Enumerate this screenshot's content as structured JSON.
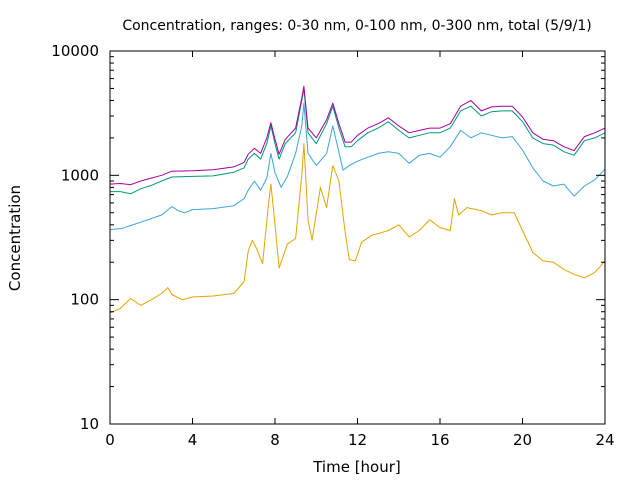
{
  "chart_data": {
    "type": "line",
    "title": "Concentration, ranges: 0-30 nm, 0-100 nm, 0-300 nm, total (5/9/1)",
    "xlabel": "Time [hour]",
    "ylabel": "Concentration",
    "xlim": [
      0,
      24
    ],
    "ylim": [
      10,
      10000
    ],
    "yscale": "log",
    "grid": false,
    "legend": "none",
    "xticks": [
      0,
      4,
      8,
      12,
      16,
      20,
      24
    ],
    "xtick_labels": [
      "0",
      "4",
      "8",
      "12",
      "16",
      "20",
      "24"
    ],
    "yticks": [
      10,
      100,
      1000,
      10000
    ],
    "ytick_labels": [
      "10",
      "100",
      "1000",
      "10000"
    ],
    "series": [
      {
        "color": "#e5a400",
        "points": [
          [
            0,
            78
          ],
          [
            0.5,
            85
          ],
          [
            0.8,
            95
          ],
          [
            1.0,
            102
          ],
          [
            1.5,
            90
          ],
          [
            2.0,
            100
          ],
          [
            2.5,
            112
          ],
          [
            2.8,
            125
          ],
          [
            3.0,
            110
          ],
          [
            3.5,
            100
          ],
          [
            4.0,
            105
          ],
          [
            5.0,
            107
          ],
          [
            6.0,
            112
          ],
          [
            6.5,
            140
          ],
          [
            6.7,
            245
          ],
          [
            6.9,
            300
          ],
          [
            7.1,
            260
          ],
          [
            7.4,
            195
          ],
          [
            7.7,
            620
          ],
          [
            7.8,
            850
          ],
          [
            8.0,
            400
          ],
          [
            8.2,
            180
          ],
          [
            8.6,
            280
          ],
          [
            9.0,
            310
          ],
          [
            9.3,
            1000
          ],
          [
            9.4,
            1800
          ],
          [
            9.6,
            440
          ],
          [
            9.8,
            300
          ],
          [
            10.2,
            800
          ],
          [
            10.5,
            550
          ],
          [
            10.8,
            1200
          ],
          [
            11.1,
            900
          ],
          [
            11.4,
            350
          ],
          [
            11.6,
            210
          ],
          [
            11.9,
            205
          ],
          [
            12.2,
            290
          ],
          [
            12.7,
            330
          ],
          [
            13.0,
            340
          ],
          [
            13.5,
            360
          ],
          [
            14.0,
            400
          ],
          [
            14.5,
            320
          ],
          [
            15.0,
            360
          ],
          [
            15.5,
            440
          ],
          [
            16.0,
            380
          ],
          [
            16.5,
            360
          ],
          [
            16.7,
            650
          ],
          [
            16.9,
            480
          ],
          [
            17.3,
            550
          ],
          [
            18.0,
            520
          ],
          [
            18.5,
            480
          ],
          [
            19.0,
            500
          ],
          [
            19.6,
            500
          ],
          [
            20.0,
            360
          ],
          [
            20.5,
            240
          ],
          [
            21.0,
            205
          ],
          [
            21.5,
            200
          ],
          [
            22.0,
            175
          ],
          [
            22.5,
            160
          ],
          [
            23.0,
            150
          ],
          [
            23.5,
            165
          ],
          [
            24.0,
            205
          ]
        ]
      },
      {
        "color": "#3aa7d4",
        "points": [
          [
            0,
            365
          ],
          [
            0.6,
            375
          ],
          [
            1.0,
            395
          ],
          [
            1.5,
            420
          ],
          [
            2.0,
            450
          ],
          [
            2.5,
            480
          ],
          [
            3.0,
            560
          ],
          [
            3.3,
            520
          ],
          [
            3.6,
            500
          ],
          [
            4.0,
            530
          ],
          [
            5.0,
            540
          ],
          [
            6.0,
            570
          ],
          [
            6.5,
            650
          ],
          [
            6.7,
            760
          ],
          [
            7.0,
            900
          ],
          [
            7.3,
            760
          ],
          [
            7.6,
            950
          ],
          [
            7.8,
            1500
          ],
          [
            8.0,
            1050
          ],
          [
            8.3,
            800
          ],
          [
            8.6,
            980
          ],
          [
            9.0,
            1500
          ],
          [
            9.3,
            2500
          ],
          [
            9.4,
            3800
          ],
          [
            9.6,
            1500
          ],
          [
            10.0,
            1200
          ],
          [
            10.5,
            1500
          ],
          [
            10.8,
            2500
          ],
          [
            11.0,
            1800
          ],
          [
            11.3,
            1100
          ],
          [
            11.6,
            1200
          ],
          [
            12.0,
            1300
          ],
          [
            12.5,
            1400
          ],
          [
            13.0,
            1500
          ],
          [
            13.5,
            1550
          ],
          [
            14.0,
            1500
          ],
          [
            14.5,
            1250
          ],
          [
            15.0,
            1450
          ],
          [
            15.5,
            1500
          ],
          [
            16.0,
            1400
          ],
          [
            16.5,
            1700
          ],
          [
            17.0,
            2300
          ],
          [
            17.5,
            2000
          ],
          [
            18.0,
            2200
          ],
          [
            18.5,
            2100
          ],
          [
            19.0,
            2000
          ],
          [
            19.5,
            2050
          ],
          [
            20.0,
            1600
          ],
          [
            20.5,
            1150
          ],
          [
            21.0,
            900
          ],
          [
            21.5,
            820
          ],
          [
            22.0,
            850
          ],
          [
            22.5,
            680
          ],
          [
            23.0,
            820
          ],
          [
            23.5,
            920
          ],
          [
            24.0,
            1120
          ]
        ]
      },
      {
        "color": "#00997a",
        "points": [
          [
            0,
            740
          ],
          [
            0.5,
            740
          ],
          [
            1.0,
            710
          ],
          [
            1.5,
            780
          ],
          [
            2.0,
            830
          ],
          [
            2.5,
            900
          ],
          [
            3.0,
            970
          ],
          [
            4.0,
            980
          ],
          [
            5.0,
            990
          ],
          [
            6.0,
            1060
          ],
          [
            6.5,
            1150
          ],
          [
            6.7,
            1350
          ],
          [
            7.0,
            1500
          ],
          [
            7.3,
            1350
          ],
          [
            7.6,
            1800
          ],
          [
            7.8,
            2500
          ],
          [
            8.0,
            1800
          ],
          [
            8.2,
            1350
          ],
          [
            8.5,
            1800
          ],
          [
            9.0,
            2200
          ],
          [
            9.3,
            4000
          ],
          [
            9.4,
            5000
          ],
          [
            9.6,
            2200
          ],
          [
            10.0,
            1800
          ],
          [
            10.5,
            2600
          ],
          [
            10.8,
            3600
          ],
          [
            11.1,
            2400
          ],
          [
            11.4,
            1700
          ],
          [
            11.7,
            1700
          ],
          [
            12.0,
            1900
          ],
          [
            12.5,
            2200
          ],
          [
            13.0,
            2400
          ],
          [
            13.5,
            2700
          ],
          [
            14.0,
            2300
          ],
          [
            14.5,
            2000
          ],
          [
            15.0,
            2100
          ],
          [
            15.5,
            2200
          ],
          [
            16.0,
            2200
          ],
          [
            16.5,
            2400
          ],
          [
            17.0,
            3300
          ],
          [
            17.5,
            3600
          ],
          [
            18.0,
            3000
          ],
          [
            18.5,
            3250
          ],
          [
            19.0,
            3300
          ],
          [
            19.5,
            3300
          ],
          [
            20.0,
            2700
          ],
          [
            20.5,
            2000
          ],
          [
            21.0,
            1800
          ],
          [
            21.5,
            1750
          ],
          [
            22.0,
            1550
          ],
          [
            22.5,
            1450
          ],
          [
            23.0,
            1900
          ],
          [
            23.5,
            2000
          ],
          [
            24.0,
            2200
          ]
        ]
      },
      {
        "color": "#a400a4",
        "points": [
          [
            0,
            850
          ],
          [
            0.5,
            860
          ],
          [
            1.0,
            840
          ],
          [
            1.5,
            900
          ],
          [
            2.0,
            950
          ],
          [
            2.5,
            1000
          ],
          [
            3.0,
            1080
          ],
          [
            4.0,
            1090
          ],
          [
            5.0,
            1110
          ],
          [
            6.0,
            1170
          ],
          [
            6.5,
            1270
          ],
          [
            6.7,
            1480
          ],
          [
            7.0,
            1650
          ],
          [
            7.3,
            1500
          ],
          [
            7.6,
            2000
          ],
          [
            7.8,
            2650
          ],
          [
            8.0,
            1950
          ],
          [
            8.2,
            1480
          ],
          [
            8.5,
            1950
          ],
          [
            9.0,
            2400
          ],
          [
            9.3,
            4200
          ],
          [
            9.4,
            5200
          ],
          [
            9.6,
            2400
          ],
          [
            10.0,
            2000
          ],
          [
            10.5,
            2800
          ],
          [
            10.8,
            3800
          ],
          [
            11.1,
            2600
          ],
          [
            11.4,
            1850
          ],
          [
            11.7,
            1850
          ],
          [
            12.0,
            2100
          ],
          [
            12.5,
            2400
          ],
          [
            13.0,
            2600
          ],
          [
            13.5,
            2900
          ],
          [
            14.0,
            2500
          ],
          [
            14.5,
            2200
          ],
          [
            15.0,
            2300
          ],
          [
            15.5,
            2400
          ],
          [
            16.0,
            2400
          ],
          [
            16.5,
            2600
          ],
          [
            17.0,
            3600
          ],
          [
            17.5,
            4000
          ],
          [
            18.0,
            3300
          ],
          [
            18.5,
            3550
          ],
          [
            19.0,
            3600
          ],
          [
            19.5,
            3600
          ],
          [
            20.0,
            2950
          ],
          [
            20.5,
            2200
          ],
          [
            21.0,
            1950
          ],
          [
            21.5,
            1900
          ],
          [
            22.0,
            1700
          ],
          [
            22.5,
            1580
          ],
          [
            23.0,
            2050
          ],
          [
            23.5,
            2200
          ],
          [
            24.0,
            2400
          ]
        ]
      }
    ]
  }
}
